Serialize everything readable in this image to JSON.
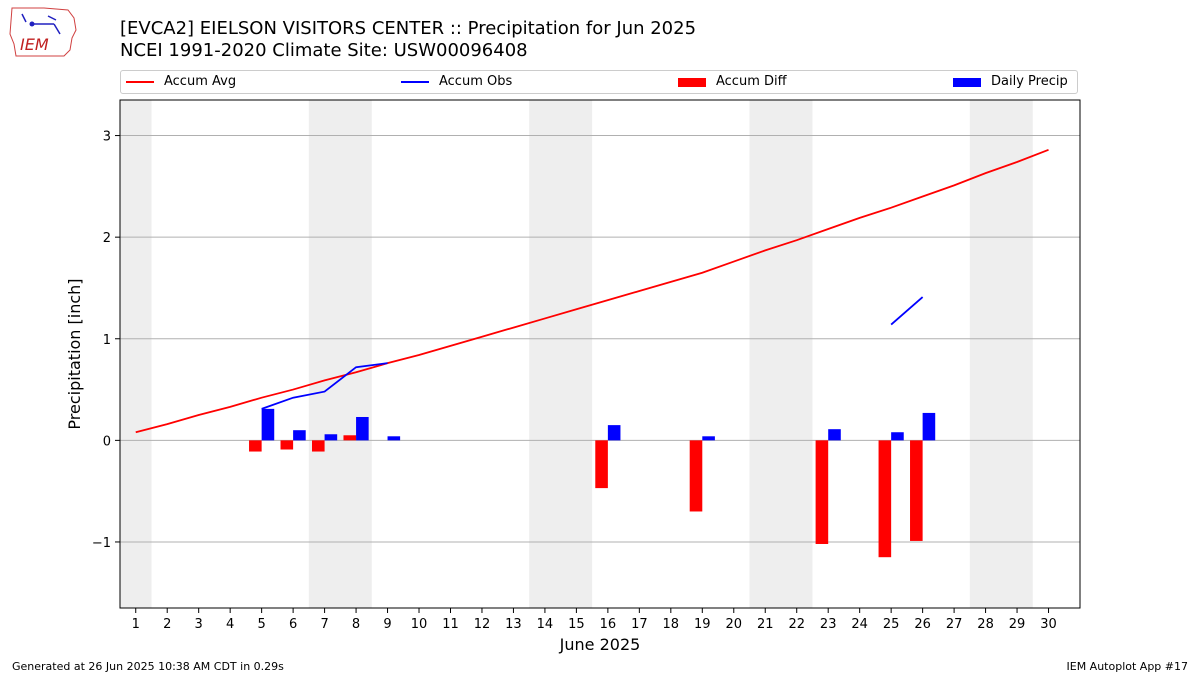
{
  "header": {
    "title_line1": "[EVCA2] EIELSON VISITORS CENTER :: Precipitation for Jun 2025",
    "title_line2": "NCEI 1991-2020 Climate Site: USW00096408",
    "logo_text": "IEM"
  },
  "legend": {
    "items": [
      {
        "label": "Accum Avg",
        "color": "#ff0000",
        "kind": "line"
      },
      {
        "label": "Accum Obs",
        "color": "#0000ff",
        "kind": "line"
      },
      {
        "label": "Accum Diff",
        "color": "#ff0000",
        "kind": "box"
      },
      {
        "label": "Daily Precip",
        "color": "#0000ff",
        "kind": "box"
      }
    ]
  },
  "footer": {
    "left": "Generated at 26 Jun 2025 10:38 AM CDT in 0.29s",
    "right": "IEM Autoplot App #17"
  },
  "chart_data": {
    "type": "bar",
    "xlabel": "June 2025",
    "ylabel": "Precipitation [inch]",
    "xlim": [
      0.5,
      31
    ],
    "ylim": [
      -1.65,
      3.35
    ],
    "yticks": [
      -1,
      0,
      1,
      2,
      3
    ],
    "ytick_labels": [
      "−1",
      "0",
      "1",
      "2",
      "3"
    ],
    "xticks": [
      1,
      2,
      3,
      4,
      5,
      6,
      7,
      8,
      9,
      10,
      11,
      12,
      13,
      14,
      15,
      16,
      17,
      18,
      19,
      20,
      21,
      22,
      23,
      24,
      25,
      26,
      27,
      28,
      29,
      30
    ],
    "grid": "horizontal",
    "weekend_shading": [
      [
        0.5,
        1.5
      ],
      [
        6.5,
        8.5
      ],
      [
        13.5,
        15.5
      ],
      [
        20.5,
        22.5
      ],
      [
        27.5,
        29.5
      ]
    ],
    "series": [
      {
        "name": "Accum Avg",
        "kind": "line",
        "color": "#ff0000",
        "x": [
          1,
          2,
          3,
          4,
          5,
          6,
          7,
          8,
          9,
          10,
          11,
          12,
          13,
          14,
          15,
          16,
          17,
          18,
          19,
          20,
          21,
          22,
          23,
          24,
          25,
          26,
          27,
          28,
          29,
          30
        ],
        "y": [
          0.08,
          0.16,
          0.25,
          0.33,
          0.42,
          0.5,
          0.59,
          0.67,
          0.76,
          0.84,
          0.93,
          1.02,
          1.11,
          1.2,
          1.29,
          1.38,
          1.47,
          1.56,
          1.65,
          1.76,
          1.87,
          1.97,
          2.08,
          2.19,
          2.29,
          2.4,
          2.51,
          2.63,
          2.74,
          2.86
        ]
      },
      {
        "name": "Accum Obs",
        "kind": "line",
        "color": "#0000ff",
        "segments": [
          {
            "x": [
              5,
              6,
              7,
              8,
              9
            ],
            "y": [
              0.31,
              0.42,
              0.48,
              0.72,
              0.76
            ]
          },
          {
            "x": [
              25,
              26
            ],
            "y": [
              1.14,
              1.41
            ]
          }
        ]
      },
      {
        "name": "Accum Diff",
        "kind": "bar",
        "color": "#ff0000",
        "x": [
          5,
          6,
          7,
          8,
          16,
          19,
          23,
          25,
          26
        ],
        "values": [
          -0.11,
          -0.09,
          -0.11,
          0.05,
          -0.47,
          -0.7,
          -1.02,
          -1.15,
          -0.99
        ]
      },
      {
        "name": "Daily Precip",
        "kind": "bar",
        "color": "#0000ff",
        "x": [
          5,
          6,
          7,
          8,
          9,
          16,
          19,
          23,
          25,
          26
        ],
        "values": [
          0.31,
          0.1,
          0.06,
          0.23,
          0.04,
          0.15,
          0.04,
          0.11,
          0.08,
          0.27
        ]
      }
    ]
  }
}
